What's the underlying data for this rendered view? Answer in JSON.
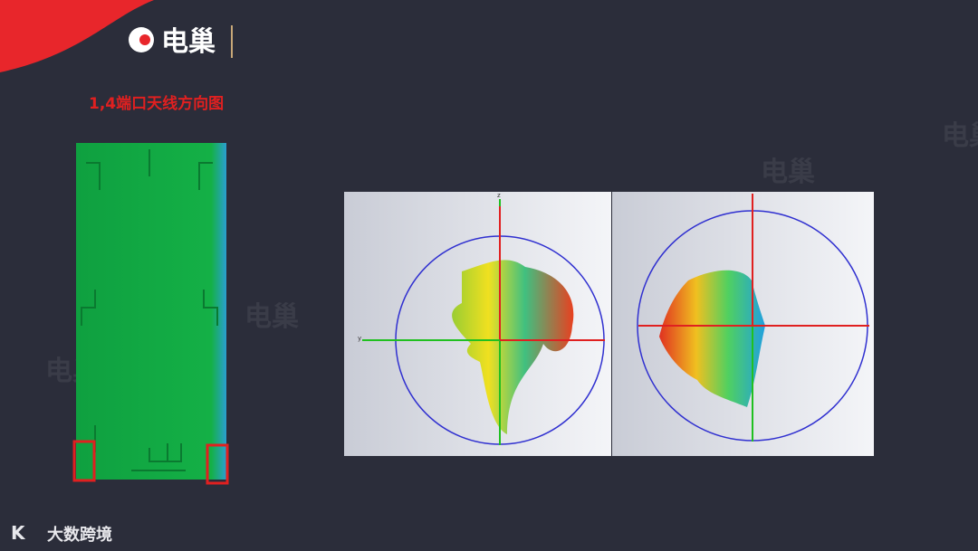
{
  "header": {
    "logo": "电巢",
    "title": "1,4端口天线方向图"
  },
  "watermark": "电巢",
  "plots": [
    {
      "axis_vertical": "z",
      "axis_horizontal": "y"
    },
    {
      "axis_vertical": "",
      "axis_horizontal": ""
    }
  ],
  "footer": {
    "brand": "大数跨境"
  }
}
